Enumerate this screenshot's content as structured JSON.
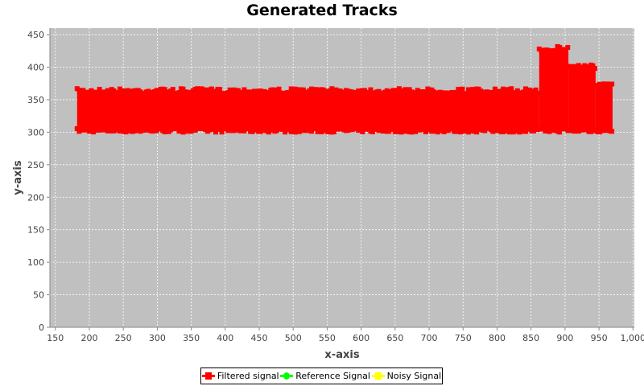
{
  "chart_data": {
    "type": "scatter",
    "title": "Generated Tracks",
    "xlabel": "x-axis",
    "ylabel": "y-axis",
    "xlim": [
      142,
      1002
    ],
    "ylim": [
      0,
      460
    ],
    "x_ticks": [
      150,
      200,
      250,
      300,
      350,
      400,
      450,
      500,
      550,
      600,
      650,
      700,
      750,
      800,
      850,
      900,
      950,
      1000
    ],
    "x_tick_labels": [
      "150",
      "200",
      "250",
      "300",
      "350",
      "400",
      "450",
      "500",
      "550",
      "600",
      "650",
      "700",
      "750",
      "800",
      "850",
      "900",
      "950",
      "1,000"
    ],
    "y_ticks": [
      0,
      50,
      100,
      150,
      200,
      250,
      300,
      350,
      400,
      450
    ],
    "y_tick_labels": [
      "0",
      "50",
      "100",
      "150",
      "200",
      "250",
      "300",
      "350",
      "400",
      "450"
    ],
    "grid": true,
    "plot_background": "#c0c0c0",
    "legend_position": "bottom",
    "series": [
      {
        "name": "Filtered signal",
        "color": "#ff0000",
        "marker": "square",
        "bands": [
          {
            "x_start": 182,
            "x_end": 862,
            "y_low": 300,
            "y_high": 367
          },
          {
            "x_start": 862,
            "x_end": 905,
            "y_low": 300,
            "y_high": 432
          },
          {
            "x_start": 905,
            "x_end": 945,
            "y_low": 300,
            "y_high": 405
          },
          {
            "x_start": 945,
            "x_end": 970,
            "y_low": 300,
            "y_high": 375
          }
        ]
      },
      {
        "name": "Reference Signal",
        "color": "#00ff00",
        "marker": "circle",
        "bands": []
      },
      {
        "name": "Noisy Signal",
        "color": "#ffff00",
        "marker": "diamond",
        "bands": []
      }
    ]
  }
}
